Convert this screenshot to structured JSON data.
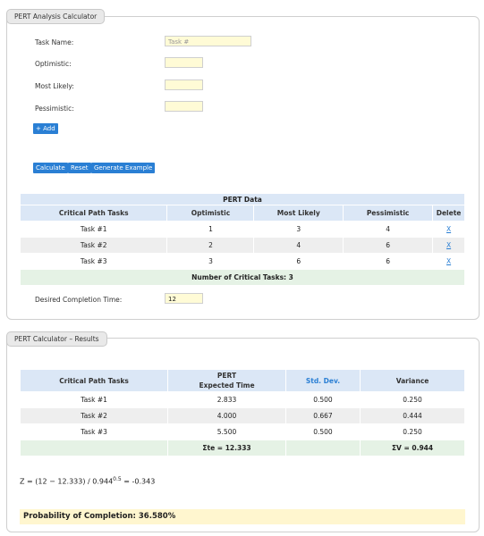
{
  "calculator": {
    "title": "PERT Analysis Calculator",
    "task_name_label": "Task Name:",
    "task_name_placeholder": "Task #",
    "optimistic_label": "Optimistic:",
    "most_likely_label": "Most Likely:",
    "pessimistic_label": "Pessimistic:",
    "add_label": "+ Add",
    "calculate_label": "Calculate",
    "reset_label": "Reset",
    "generate_label": "Generate Example",
    "desired_label": "Desired Completion Time:",
    "desired_value": "12"
  },
  "pert_data": {
    "title": "PERT Data",
    "headers": [
      "Critical Path Tasks",
      "Optimistic",
      "Most Likely",
      "Pessimistic",
      "Delete"
    ],
    "rows": [
      {
        "task": "Task #1",
        "opt": "1",
        "ml": "3",
        "pess": "4",
        "del": "X"
      },
      {
        "task": "Task #2",
        "opt": "2",
        "ml": "4",
        "pess": "6",
        "del": "X"
      },
      {
        "task": "Task #3",
        "opt": "3",
        "ml": "6",
        "pess": "6",
        "del": "X"
      }
    ],
    "footer": "Number of Critical Tasks: 3"
  },
  "results": {
    "title": "PERT Calculator – Results",
    "h_task": "Critical Path Tasks",
    "h_exp1": "PERT",
    "h_exp2": "Expected Time",
    "h_std": "Std. Dev.",
    "h_var": "Variance",
    "rows": [
      {
        "task": "Task #1",
        "te": "2.833",
        "sd": "0.500",
        "v": "0.250"
      },
      {
        "task": "Task #2",
        "te": "4.000",
        "sd": "0.667",
        "v": "0.444"
      },
      {
        "task": "Task #3",
        "te": "5.500",
        "sd": "0.500",
        "v": "0.250"
      }
    ],
    "sum_te": "Σte = 12.333",
    "sum_v": "ΣV = 0.944",
    "formula_pre": "Z = (12 − 12.333) / 0.944",
    "formula_exp": "0.5",
    "formula_post": " = -0.343",
    "probability": "Probability of Completion: 36.580%"
  }
}
